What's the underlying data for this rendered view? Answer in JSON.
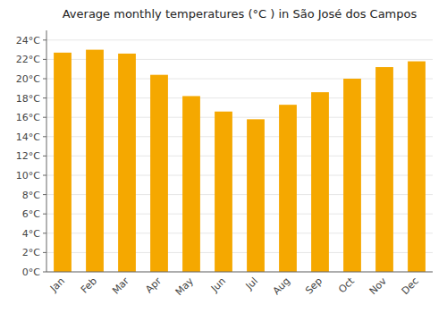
{
  "chart_data": {
    "type": "bar",
    "title": "Average monthly temperatures (°C ) in São José dos Campos",
    "categories": [
      "Jan",
      "Feb",
      "Mar",
      "Apr",
      "May",
      "Jun",
      "Jul",
      "Aug",
      "Sep",
      "Oct",
      "Nov",
      "Dec"
    ],
    "values": [
      22.7,
      23.0,
      22.6,
      20.4,
      18.2,
      16.6,
      15.8,
      17.3,
      18.6,
      20.0,
      21.2,
      21.8
    ],
    "color": "#F5A800",
    "ylim": [
      0,
      25
    ],
    "yticks": [
      {
        "value": 0,
        "label": "0°C"
      },
      {
        "value": 2,
        "label": "2°C"
      },
      {
        "value": 4,
        "label": "4°C"
      },
      {
        "value": 6,
        "label": "6°C"
      },
      {
        "value": 8,
        "label": "8°C"
      },
      {
        "value": 10,
        "label": "10°C"
      },
      {
        "value": 12,
        "label": "12°C"
      },
      {
        "value": 14,
        "label": "14°C"
      },
      {
        "value": 16,
        "label": "16°C"
      },
      {
        "value": 18,
        "label": "18°C"
      },
      {
        "value": 20,
        "label": "20°C"
      },
      {
        "value": 22,
        "label": "22°C"
      },
      {
        "value": 24,
        "label": "24°C"
      }
    ],
    "grid": true
  }
}
